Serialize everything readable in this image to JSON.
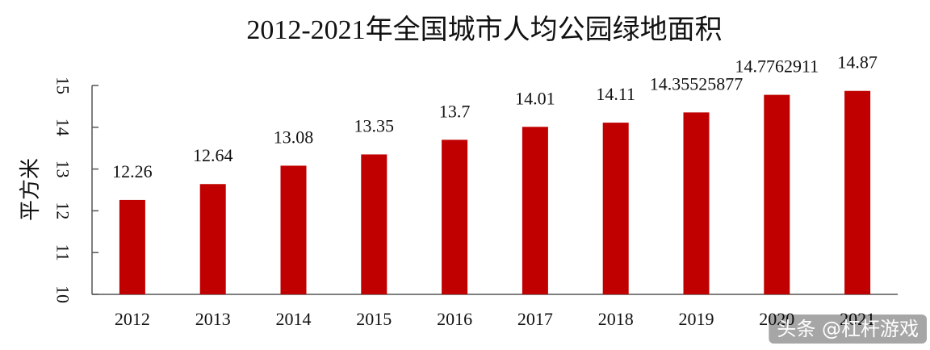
{
  "chart_data": {
    "type": "bar",
    "title": "2012-2021年全国城市人均公园绿地面积",
    "xlabel": "",
    "ylabel": "平方米",
    "ylim": [
      10,
      15
    ],
    "yticks": [
      "10",
      "11",
      "12",
      "13",
      "14",
      "15"
    ],
    "categories": [
      "2012",
      "2013",
      "2014",
      "2015",
      "2016",
      "2017",
      "2018",
      "2019",
      "2020",
      "2021"
    ],
    "values": [
      12.26,
      12.64,
      13.08,
      13.35,
      13.7,
      14.01,
      14.11,
      14.35525877,
      14.7762911,
      14.87
    ],
    "data_labels": [
      "12.26",
      "12.64",
      "13.08",
      "13.35",
      "13.7",
      "14.01",
      "14.11",
      "14.35525877",
      "14.7762911",
      "14.87"
    ],
    "bar_color": "#c00000",
    "grid": false
  },
  "watermark": {
    "text": "头条 @杠杆游戏"
  }
}
